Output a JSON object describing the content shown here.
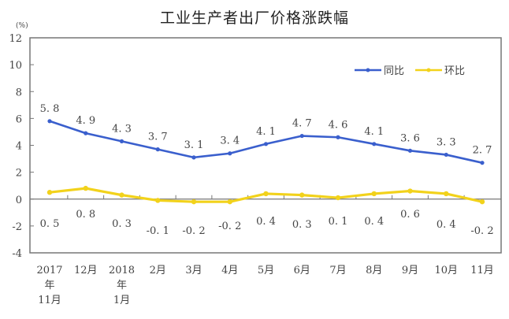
{
  "chart_data": {
    "type": "line",
    "title": "工业生产者出厂价格涨跌幅",
    "unit": "(%)",
    "xlabel": "",
    "ylabel": "(%)",
    "ylim": [
      -4,
      12
    ],
    "yticks": [
      12,
      10,
      8,
      6,
      4,
      2,
      0,
      -2,
      -4
    ],
    "grid": false,
    "legend_position": "upper right",
    "categories": [
      "2017年11月",
      "12月",
      "2018年1月",
      "2月",
      "3月",
      "4月",
      "5月",
      "6月",
      "7月",
      "8月",
      "9月",
      "10月",
      "11月"
    ],
    "category_lines": [
      [
        "2017",
        "年",
        "11月"
      ],
      [
        "12月"
      ],
      [
        "2018",
        "年",
        "1月"
      ],
      [
        "2月"
      ],
      [
        "3月"
      ],
      [
        "4月"
      ],
      [
        "5月"
      ],
      [
        "6月"
      ],
      [
        "7月"
      ],
      [
        "8月"
      ],
      [
        "9月"
      ],
      [
        "10月"
      ],
      [
        "11月"
      ]
    ],
    "series": [
      {
        "name": "同比",
        "color": "#3a5fcd",
        "values": [
          5.8,
          4.9,
          4.3,
          3.7,
          3.1,
          3.4,
          4.1,
          4.7,
          4.6,
          4.1,
          3.6,
          3.3,
          2.7
        ]
      },
      {
        "name": "环比",
        "color": "#f2d21b",
        "values": [
          0.5,
          0.8,
          0.3,
          -0.1,
          -0.2,
          -0.2,
          0.4,
          0.3,
          0.1,
          0.4,
          0.6,
          0.4,
          -0.2
        ]
      }
    ]
  }
}
